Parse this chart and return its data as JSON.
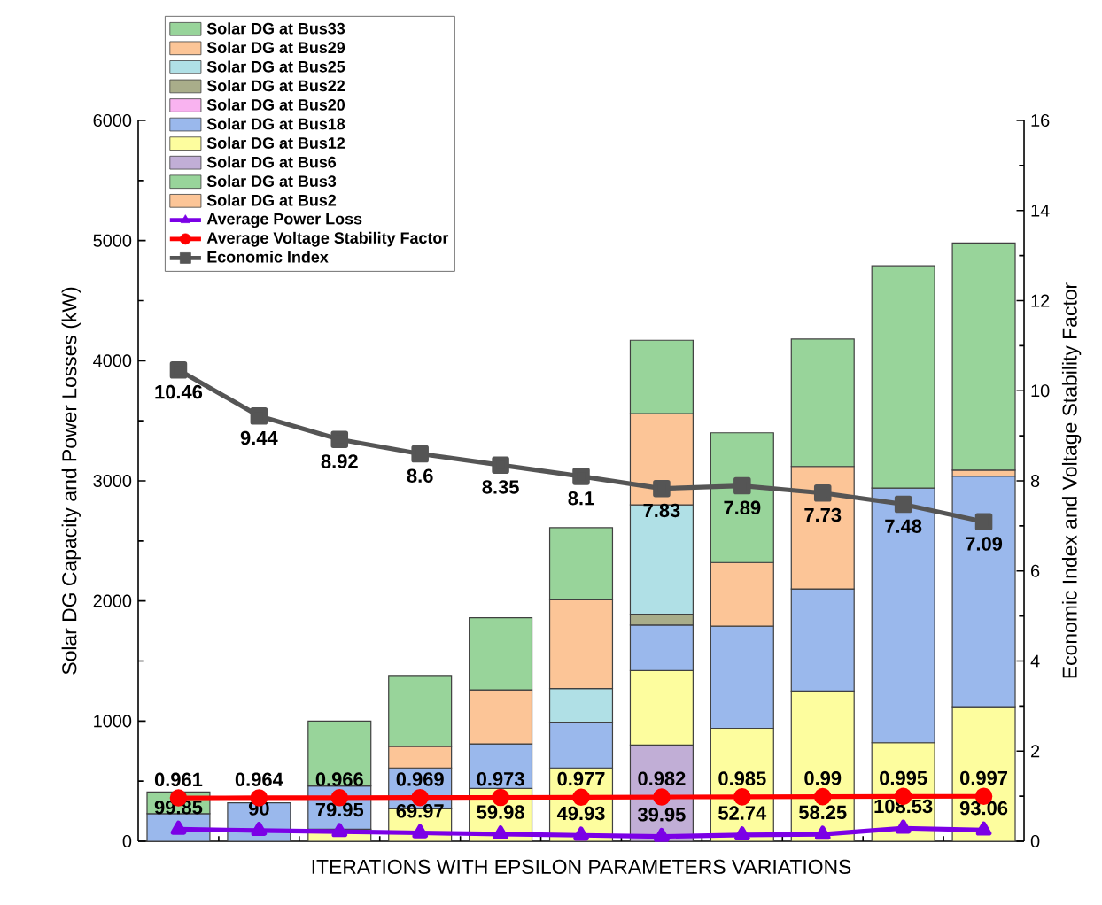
{
  "chart_data": {
    "type": "bar",
    "stacked": true,
    "xlabel": "ITERATIONS WITH EPSILON PARAMETERS VARIATIONS",
    "ylabel": "Solar DG Capacity and Power Losses (kW)",
    "y2label": "Economic Index and Voltage Stability Factor",
    "categories": [
      null,
      null,
      null,
      null,
      null,
      null,
      null,
      null,
      null,
      null,
      null
    ],
    "tick_labels": "y",
    "legend": "top left",
    "ylim": [
      0,
      6000
    ],
    "yticks": [
      0,
      1000,
      2000,
      3000,
      4000,
      5000,
      6000
    ],
    "y2lim": [
      0,
      16
    ],
    "y2ticks": [
      0,
      2,
      4,
      6,
      8,
      10,
      12,
      14,
      16
    ],
    "series": [
      {
        "name": "Solar DG at Bus2",
        "color": "#fcc597",
        "values": [
          null,
          null,
          null,
          null,
          null,
          null,
          null,
          null,
          null,
          null,
          null
        ]
      },
      {
        "name": "Solar DG at Bus3",
        "color": "#98d49a",
        "values": [
          null,
          null,
          null,
          null,
          null,
          null,
          null,
          null,
          null,
          null,
          null
        ]
      },
      {
        "name": "Solar DG at Bus6",
        "color": "#c1aed6",
        "values": [
          null,
          null,
          null,
          null,
          null,
          null,
          800,
          null,
          null,
          null,
          null
        ]
      },
      {
        "name": "Solar DG at Bus12",
        "color": "#fdfd9e",
        "values": [
          null,
          null,
          100,
          270,
          440,
          610,
          620,
          940,
          1250,
          820,
          1120
        ]
      },
      {
        "name": "Solar DG at Bus18",
        "color": "#9ab8ec",
        "values": [
          230,
          320,
          360,
          340,
          370,
          380,
          380,
          850,
          850,
          2120,
          1920
        ]
      },
      {
        "name": "Solar DG at Bus20",
        "color": "#f9b3f0",
        "values": [
          null,
          null,
          null,
          null,
          null,
          null,
          null,
          null,
          null,
          null,
          null
        ]
      },
      {
        "name": "Solar DG at Bus22",
        "color": "#a9ad8a",
        "values": [
          null,
          null,
          null,
          null,
          null,
          null,
          90,
          null,
          null,
          null,
          null
        ]
      },
      {
        "name": "Solar DG at Bus25",
        "color": "#b0e0e6",
        "values": [
          null,
          null,
          null,
          null,
          null,
          280,
          910,
          null,
          null,
          null,
          null
        ]
      },
      {
        "name": "Solar DG at Bus29",
        "color": "#fcc597",
        "values": [
          null,
          null,
          null,
          180,
          450,
          740,
          760,
          530,
          1020,
          null,
          50
        ]
      },
      {
        "name": "Solar DG at Bus33",
        "color": "#98d49a",
        "values": [
          180,
          null,
          540,
          590,
          600,
          600,
          610,
          1080,
          1060,
          1850,
          1890
        ]
      },
      {
        "name": "Average Power Loss",
        "type": "line",
        "marker": "triangle",
        "color": "#7b00e6",
        "values": [
          99.85,
          90,
          79.95,
          69.97,
          59.98,
          49.93,
          39.95,
          52.74,
          58.25,
          108.53,
          93.06
        ],
        "value_labels": [
          "99.85",
          "90",
          "79.95",
          "69.97",
          "59.98",
          "49.93",
          "39.95",
          "52.74",
          "58.25",
          "108.53",
          "93.06"
        ]
      },
      {
        "name": "Average Voltage Stability Factor",
        "type": "line",
        "axis": "y2",
        "marker": "circle",
        "color": "#ff0000",
        "values": [
          0.961,
          0.964,
          0.966,
          0.969,
          0.973,
          0.977,
          0.982,
          0.985,
          0.99,
          0.995,
          0.997
        ],
        "value_labels": [
          "0.961",
          "0.964",
          "0.966",
          "0.969",
          "0.973",
          "0.977",
          "0.982",
          "0.985",
          "0.99",
          "0.995",
          "0.997"
        ]
      },
      {
        "name": "Economic Index",
        "type": "line",
        "axis": "y2",
        "marker": "square",
        "color": "#555555",
        "values": [
          10.46,
          9.44,
          8.92,
          8.6,
          8.35,
          8.1,
          7.83,
          7.89,
          7.73,
          7.48,
          7.09
        ],
        "value_labels": [
          "10.46",
          "9.44",
          "8.92",
          "8.6",
          "8.35",
          "8.1",
          "7.83",
          "7.89",
          "7.73",
          "7.48",
          "7.09"
        ]
      }
    ]
  }
}
